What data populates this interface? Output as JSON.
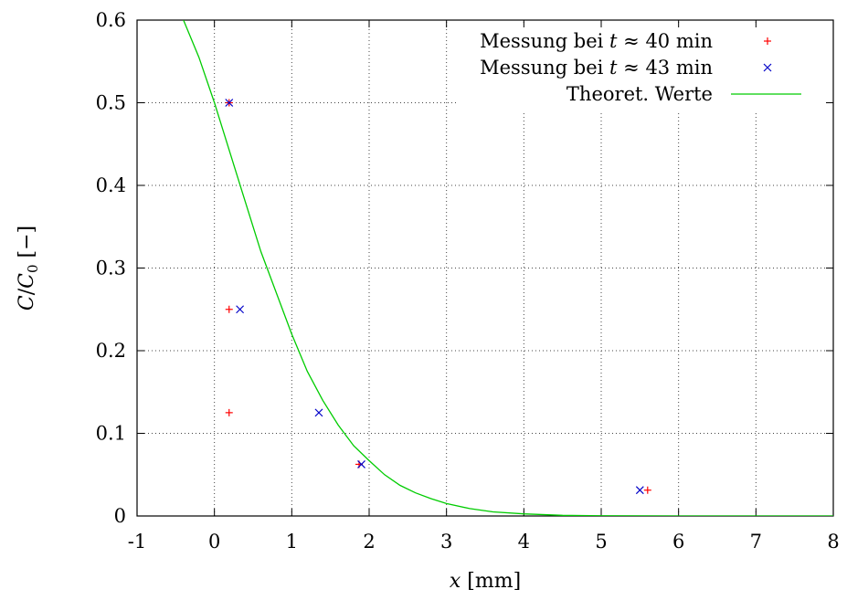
{
  "chart_data": {
    "type": "scatter",
    "xlabel": {
      "var": "x",
      "unit": "[mm]"
    },
    "ylabel": {
      "num": "C",
      "slash": "/",
      "den": "C",
      "sub": "0",
      "unit": "[−]"
    },
    "xlim": [
      -1,
      8
    ],
    "ylim": [
      0,
      0.6
    ],
    "xticks": [
      "-1",
      "0",
      "1",
      "2",
      "3",
      "4",
      "5",
      "6",
      "7",
      "8"
    ],
    "yticks": [
      "0",
      "0.1",
      "0.2",
      "0.3",
      "0.4",
      "0.5",
      "0.6"
    ],
    "grid": true,
    "legend_position": "top-right",
    "series": [
      {
        "name": "Messung bei t ≈ 40 min",
        "legend": {
          "prefix": "Messung bei ",
          "var": "t",
          "rel": " ≈ 40 min"
        },
        "marker": "plus",
        "color": "#ff0000",
        "points": [
          [
            0.19,
            0.5
          ],
          [
            0.19,
            0.25
          ],
          [
            0.19,
            0.125
          ],
          [
            1.87,
            0.0625
          ],
          [
            5.6,
            0.03125
          ]
        ]
      },
      {
        "name": "Messung bei t ≈ 43 min",
        "legend": {
          "prefix": "Messung bei ",
          "var": "t",
          "rel": " ≈ 43 min"
        },
        "marker": "cross",
        "color": "#0000c8",
        "points": [
          [
            0.19,
            0.5
          ],
          [
            0.33,
            0.25
          ],
          [
            1.35,
            0.125
          ],
          [
            1.9,
            0.0625
          ],
          [
            5.5,
            0.03125
          ]
        ]
      },
      {
        "name": "Theoret. Werte",
        "legend": {
          "prefix": "Theoret. Werte",
          "var": "",
          "rel": ""
        },
        "marker": "line",
        "color": "#00cc00",
        "points": [
          [
            -0.4,
            0.6
          ],
          [
            -0.2,
            0.555
          ],
          [
            0,
            0.5
          ],
          [
            0.2,
            0.44
          ],
          [
            0.4,
            0.38
          ],
          [
            0.6,
            0.32
          ],
          [
            0.8,
            0.27
          ],
          [
            1.0,
            0.22
          ],
          [
            1.2,
            0.175
          ],
          [
            1.4,
            0.14
          ],
          [
            1.6,
            0.11
          ],
          [
            1.8,
            0.085
          ],
          [
            2.0,
            0.067
          ],
          [
            2.2,
            0.05
          ],
          [
            2.4,
            0.037
          ],
          [
            2.6,
            0.028
          ],
          [
            2.8,
            0.021
          ],
          [
            3.0,
            0.015
          ],
          [
            3.3,
            0.009
          ],
          [
            3.6,
            0.005
          ],
          [
            4.0,
            0.0025
          ],
          [
            4.5,
            0.0008
          ],
          [
            5.0,
            0.0002
          ],
          [
            6.0,
            0.0
          ],
          [
            7.0,
            0.0
          ],
          [
            8.0,
            0.0
          ]
        ]
      }
    ]
  }
}
